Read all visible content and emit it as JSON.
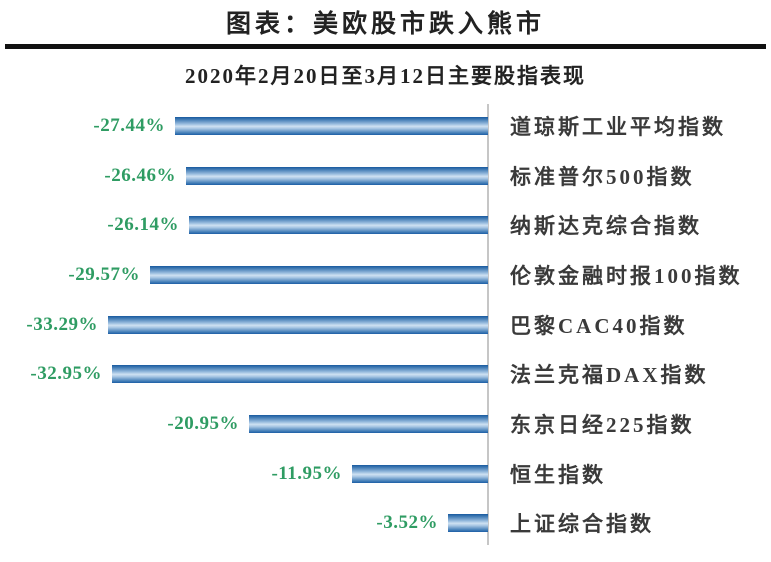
{
  "chart_data": {
    "type": "bar",
    "orientation": "horizontal",
    "title": "图表：美欧股市跌入熊市",
    "subtitle": "2020年2月20日至3月12日主要股指表现",
    "unit": "%",
    "categories": [
      "道琼斯工业平均指数",
      "标准普尔500指数",
      "纳斯达克综合指数",
      "伦敦金融时报100指数",
      "巴黎CAC40指数",
      "法兰克福DAX指数",
      "东京日经225指数",
      "恒生指数",
      "上证综合指数"
    ],
    "values": [
      -27.44,
      -26.46,
      -26.14,
      -29.57,
      -33.29,
      -32.95,
      -20.95,
      -11.95,
      -3.52
    ],
    "value_labels": [
      "-27.44%",
      "-26.46%",
      "-26.14%",
      "-29.57%",
      "-33.29%",
      "-32.95%",
      "-20.95%",
      "-11.95%",
      "-3.52%"
    ],
    "xlim": [
      -35,
      0
    ],
    "grid": false,
    "legend": false,
    "bars_anchored_to": "right-axis"
  },
  "colors": {
    "value_label_green": "#2f9c63",
    "bar_edge_blue": "#17599e",
    "bar_center_blue": "#cfe1f2",
    "axis_gray": "#c6c6c6",
    "title_rule_black": "#111111",
    "text_black": "#222222",
    "index_label_gray": "#3a3a3a"
  }
}
